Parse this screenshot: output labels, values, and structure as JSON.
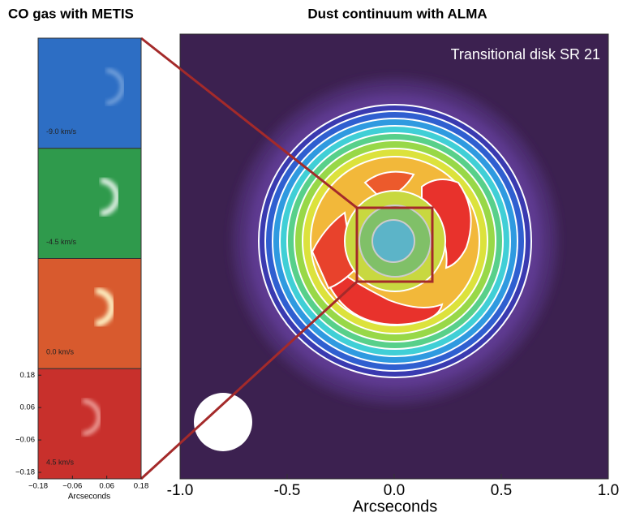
{
  "titles": {
    "left": "CO gas with METIS",
    "right": "Dust continuum with ALMA"
  },
  "main": {
    "label": "Transitional disk SR 21",
    "x_axis": {
      "label": "Arcseconds",
      "lim": [
        -1.0,
        1.0
      ],
      "ticks": [
        {
          "value": -1.0,
          "label": "-1.0"
        },
        {
          "value": -0.5,
          "label": "-0.5"
        },
        {
          "value": 0.0,
          "label": "0.0"
        },
        {
          "value": 0.5,
          "label": "0.5"
        },
        {
          "value": 1.0,
          "label": "1.0"
        }
      ]
    }
  },
  "panels": [
    {
      "label": "-9.0 km/s"
    },
    {
      "label": "-4.5 km/s"
    },
    {
      "label": "0.0 km/s"
    },
    {
      "label": "4.5 km/s"
    }
  ],
  "panel_axes": {
    "label": "Arcseconds",
    "lim": [
      -0.18,
      0.18
    ],
    "xticks": [
      {
        "value": -0.18,
        "label": "−0.18"
      },
      {
        "value": -0.06,
        "label": "−0.06"
      },
      {
        "value": 0.06,
        "label": "0.06"
      },
      {
        "value": 0.18,
        "label": "0.18"
      }
    ],
    "yticks": [
      {
        "value": 0.18,
        "label": "0.18"
      },
      {
        "value": 0.06,
        "label": "0.06"
      },
      {
        "value": -0.06,
        "label": "−0.06"
      },
      {
        "value": -0.18,
        "label": "−0.18"
      }
    ]
  }
}
